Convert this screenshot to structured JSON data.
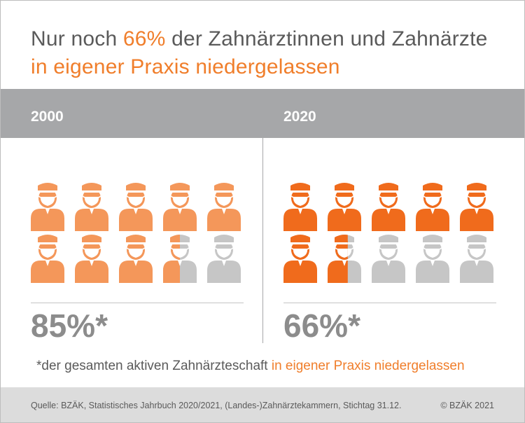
{
  "title": {
    "line1_before": "Nur noch ",
    "line1_accent": "66%",
    "line1_after": " der Zahnärztinnen und Zahnärzte",
    "line2": "in eigener Praxis niedergelassen"
  },
  "chart_data": {
    "type": "pictogram",
    "title": "Nur noch 66% der Zahnärztinnen und Zahnärzte in eigener Praxis niedergelassen",
    "icons_total": 10,
    "icon_subject": "dentist with cap and mask",
    "series": [
      {
        "name": "2000",
        "label": "85%*",
        "value": 85,
        "icons_filled": 8.5,
        "color": "#f4975a"
      },
      {
        "name": "2020",
        "label": "66%*",
        "value": 66,
        "icons_filled": 6.6,
        "color": "#f06b1c"
      }
    ],
    "empty_color": "#c6c6c6"
  },
  "footnote": {
    "prefix": "*der gesamten aktiven Zahnärzteschaft ",
    "accent": "in eigener Praxis niedergelassen"
  },
  "source": "Quelle: BZÄK, Statistisches Jahrbuch 2020/2021, (Landes-)Zahnärztekammern, Stichtag 31.12.",
  "copyright": "© BZÄK 2021",
  "colors": {
    "accent": "#f07e2b",
    "text": "#5a5a5a",
    "band": "#a6a7a9",
    "percent": "#8c8c8c",
    "source_bar": "#dcdcdc"
  }
}
